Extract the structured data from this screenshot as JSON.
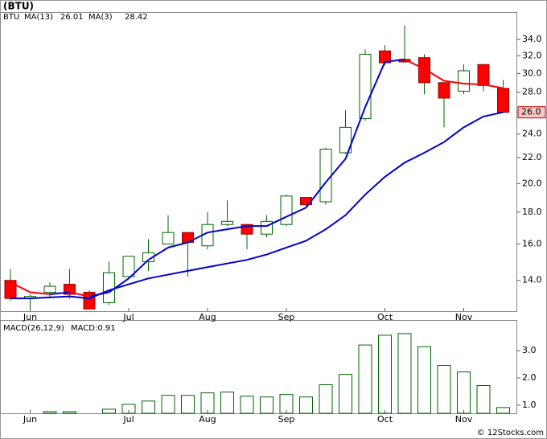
{
  "title": "(BTU)",
  "footer": "© 12Stocks.com",
  "chart_data": [
    {
      "type": "candlestick",
      "symbol": "BTU",
      "log_scale": true,
      "grid": false,
      "categories": [
        null,
        "Jun",
        null,
        null,
        null,
        null,
        "Jul",
        null,
        null,
        null,
        "Aug",
        null,
        null,
        null,
        "Sep",
        null,
        null,
        null,
        null,
        "Oct",
        null,
        null,
        null,
        "Nov",
        null,
        null
      ],
      "open": [
        14.0,
        13.1,
        13.4,
        13.8,
        13.4,
        12.9,
        14.2,
        15.0,
        16.0,
        16.7,
        15.9,
        17.2,
        17.2,
        16.6,
        17.2,
        19.0,
        18.7,
        22.4,
        25.4,
        32.6,
        31.6,
        31.8,
        29.0,
        28.1,
        31.0,
        28.4
      ],
      "high": [
        14.6,
        13.3,
        13.9,
        14.6,
        13.5,
        15.0,
        15.3,
        16.3,
        17.8,
        16.7,
        18.0,
        18.8,
        17.2,
        17.8,
        19.2,
        19.0,
        22.8,
        26.2,
        32.8,
        33.3,
        35.8,
        32.2,
        29.0,
        31.0,
        31.0,
        29.3
      ],
      "low": [
        13.0,
        12.6,
        13.1,
        13.1,
        12.6,
        12.8,
        14.1,
        14.5,
        16.0,
        14.2,
        15.7,
        17.1,
        15.7,
        16.4,
        17.1,
        18.4,
        18.5,
        22.3,
        25.2,
        30.9,
        31.2,
        27.8,
        24.6,
        27.8,
        28.1,
        26.0
      ],
      "close": [
        13.1,
        13.2,
        13.7,
        13.3,
        12.6,
        14.4,
        15.3,
        15.5,
        16.7,
        16.1,
        17.2,
        17.4,
        16.6,
        17.4,
        19.1,
        18.5,
        22.7,
        24.6,
        32.2,
        31.2,
        31.3,
        29.0,
        27.4,
        30.3,
        28.7,
        26.0
      ],
      "up_color": "#ffffff",
      "down_color": "#ff0000",
      "candle_stroke": "#006600",
      "series": [
        {
          "name": "MA(13)",
          "last_label": "26.01",
          "color": "#0000cc",
          "values": [
            13.1,
            13.1,
            13.15,
            13.2,
            13.1,
            13.5,
            13.8,
            14.1,
            14.3,
            14.5,
            14.7,
            14.9,
            15.1,
            15.4,
            15.8,
            16.2,
            16.9,
            17.8,
            19.2,
            20.5,
            21.6,
            22.4,
            23.3,
            24.6,
            25.6,
            26.01
          ]
        },
        {
          "name": "MA(3)",
          "last_label": "28.42",
          "rising_color": "#0000cc",
          "falling_color": "#ff0000",
          "values": [
            13.9,
            13.4,
            13.3,
            13.4,
            13.2,
            13.4,
            14.1,
            15.1,
            15.8,
            16.1,
            16.7,
            16.9,
            17.1,
            17.1,
            17.7,
            18.3,
            20.1,
            21.9,
            26.5,
            31.3,
            31.6,
            30.5,
            29.2,
            28.9,
            28.8,
            28.42
          ]
        }
      ],
      "last_price_label": "26.0",
      "ylim": [
        12.5,
        37.5
      ],
      "yticks": [
        {
          "value": 14,
          "label": "14.0"
        },
        {
          "value": 16,
          "label": "16.0"
        },
        {
          "value": 18,
          "label": "18.0"
        },
        {
          "value": 20,
          "label": "20.0"
        },
        {
          "value": 22,
          "label": "22.0"
        },
        {
          "value": 24,
          "label": "24.0"
        },
        {
          "value": 26,
          "label": "26.0"
        },
        {
          "value": 28,
          "label": "28.0"
        },
        {
          "value": 30,
          "label": "30.0"
        },
        {
          "value": 32,
          "label": "32.0"
        },
        {
          "value": 34,
          "label": "34.0"
        }
      ]
    },
    {
      "type": "bar",
      "indicator": "MACD(26,12,9)",
      "legend": "MACD:0.91",
      "color": "#006600",
      "categories": [
        null,
        "Jun",
        null,
        null,
        null,
        null,
        "Jul",
        null,
        null,
        null,
        "Aug",
        null,
        null,
        null,
        "Sep",
        null,
        null,
        null,
        null,
        "Oct",
        null,
        null,
        null,
        "Nov",
        null,
        null
      ],
      "values": [
        0.7,
        0.7,
        0.76,
        0.76,
        0.7,
        0.85,
        1.03,
        1.15,
        1.36,
        1.36,
        1.45,
        1.48,
        1.33,
        1.3,
        1.39,
        1.3,
        1.75,
        2.13,
        3.21,
        3.57,
        3.63,
        3.15,
        2.46,
        2.22,
        1.72,
        0.91
      ],
      "ylim": [
        0.7,
        4.1
      ],
      "yticks": [
        {
          "value": 1,
          "label": "1.0"
        },
        {
          "value": 2,
          "label": "2.0"
        },
        {
          "value": 3,
          "label": "3.0"
        }
      ]
    }
  ]
}
